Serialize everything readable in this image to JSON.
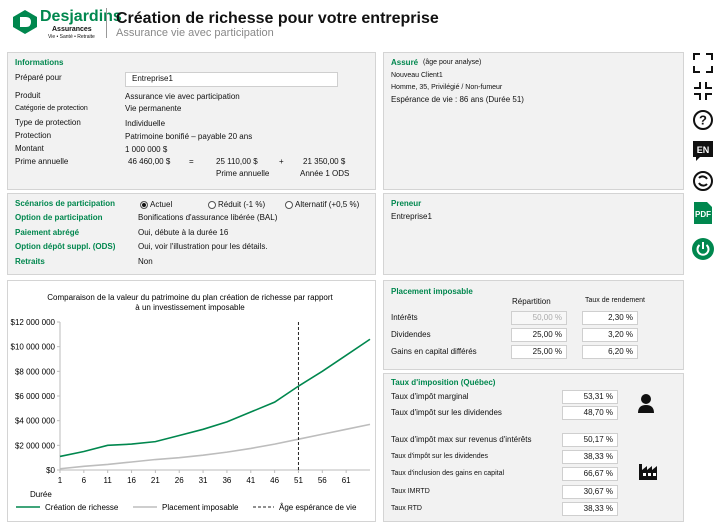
{
  "header": {
    "logo": "Desjardins",
    "logo_sub": "Assurances",
    "logo_tag": "Vie • Santé • Retraite",
    "title": "Création de richesse pour votre entreprise",
    "subtitle": "Assurance vie avec participation"
  },
  "informations": {
    "title": "Informations",
    "prepared_label": "Préparé pour",
    "prepared_value": "Entreprise1",
    "rows": [
      [
        "Produit",
        "Assurance vie avec participation"
      ],
      [
        "Catégorie de protection",
        "Vie permanente"
      ],
      [
        "Type de protection",
        "Individuelle"
      ],
      [
        "Protection",
        "Patrimoine bonifié – payable 20 ans"
      ],
      [
        "Montant",
        "1 000 000 $"
      ]
    ],
    "premium": {
      "label": "Prime annuelle",
      "total": "46 460,00 $",
      "eq": "=",
      "base": "25 110,00 $",
      "base_label": "Prime annuelle",
      "plus": "+",
      "ods": "21 350,00 $",
      "ods_label": "Année 1 ODS"
    }
  },
  "assure": {
    "title": "Assuré",
    "note": "(âge pour analyse)",
    "lines": [
      "Nouveau Client1",
      "Homme, 35, Privilégié / Non-fumeur",
      "Espérance de vie : 86 ans (Durée 51)"
    ]
  },
  "scenarios": {
    "title": "Scénarios de participation",
    "options": [
      "Actuel",
      "Réduit (-1 %)",
      "Alternatif (+0,5 %)"
    ],
    "selected": 0,
    "rows": [
      [
        "Option de participation",
        "Bonifications d'assurance libérée (BAL)"
      ],
      [
        "Paiement abrégé",
        "Oui, débute à la durée 16"
      ],
      [
        "Option dépôt suppl. (ODS)",
        "Oui, voir l'illustration pour les détails."
      ],
      [
        "Retraits",
        "Non"
      ]
    ]
  },
  "preneur": {
    "title": "Preneur",
    "value": "Entreprise1"
  },
  "chart_data": {
    "type": "line",
    "title": "Comparaison de la valeur du patrimoine du plan création de richesse par rapport à un investissement imposable",
    "xlabel": "Durée",
    "x": [
      1,
      6,
      11,
      16,
      21,
      26,
      31,
      36,
      41,
      46,
      51,
      56,
      61,
      66
    ],
    "series": [
      {
        "name": "Création de richesse",
        "color": "#00874e",
        "values": [
          1100000,
          1500000,
          2000000,
          2100000,
          2300000,
          2800000,
          3300000,
          3900000,
          4700000,
          5500000,
          6800000,
          8000000,
          9300000,
          10600000
        ]
      },
      {
        "name": "Placement imposable",
        "color": "#bdbdbd",
        "values": [
          100000,
          300000,
          450000,
          650000,
          850000,
          1000000,
          1200000,
          1450000,
          1750000,
          2100000,
          2500000,
          2900000,
          3300000,
          3700000
        ]
      }
    ],
    "vline": {
      "x": 51,
      "label": "Âge espérance de vie"
    },
    "xlim": [
      1,
      66
    ],
    "xticks": [
      1,
      6,
      11,
      16,
      21,
      26,
      31,
      36,
      41,
      46,
      51,
      56,
      61
    ],
    "ylim": [
      0,
      12000000
    ],
    "yticks": [
      {
        "value": 0,
        "label": "$0"
      },
      {
        "value": 2000000,
        "label": "$2 000 000"
      },
      {
        "value": 4000000,
        "label": "$4 000 000"
      },
      {
        "value": 6000000,
        "label": "$6 000 000"
      },
      {
        "value": 8000000,
        "label": "$8 000 000"
      },
      {
        "value": 10000000,
        "label": "$10 000 000"
      },
      {
        "value": 12000000,
        "label": "$12 000 000"
      }
    ]
  },
  "placement": {
    "title": "Placement imposable",
    "headers": [
      "Répartition",
      "Taux de rendement"
    ],
    "rows": [
      [
        "Intérêts",
        "50,00 %",
        "2,30 %"
      ],
      [
        "Dividendes",
        "25,00 %",
        "3,20 %"
      ],
      [
        "Gains en capital différés",
        "25,00 %",
        "6,20 %"
      ]
    ]
  },
  "taxes": {
    "title": "Taux d'imposition (Québec)",
    "rows": [
      [
        "Taux d'impôt marginal",
        "53,31 %"
      ],
      [
        "Taux d'impôt sur les dividendes",
        "48,70 %"
      ],
      [
        "Taux d'impôt max sur revenus d'intérêts",
        "50,17 %"
      ],
      [
        "Taux d'impôt sur les dividendes",
        "38,33 %"
      ],
      [
        "Taux d'inclusion des gains en capital",
        "66,67 %"
      ],
      [
        "Taux IMRTD",
        "30,67 %"
      ],
      [
        "Taux RTD",
        "38,33 %"
      ]
    ]
  },
  "toolbar": {
    "lang": "EN",
    "pdf": "PDF"
  }
}
